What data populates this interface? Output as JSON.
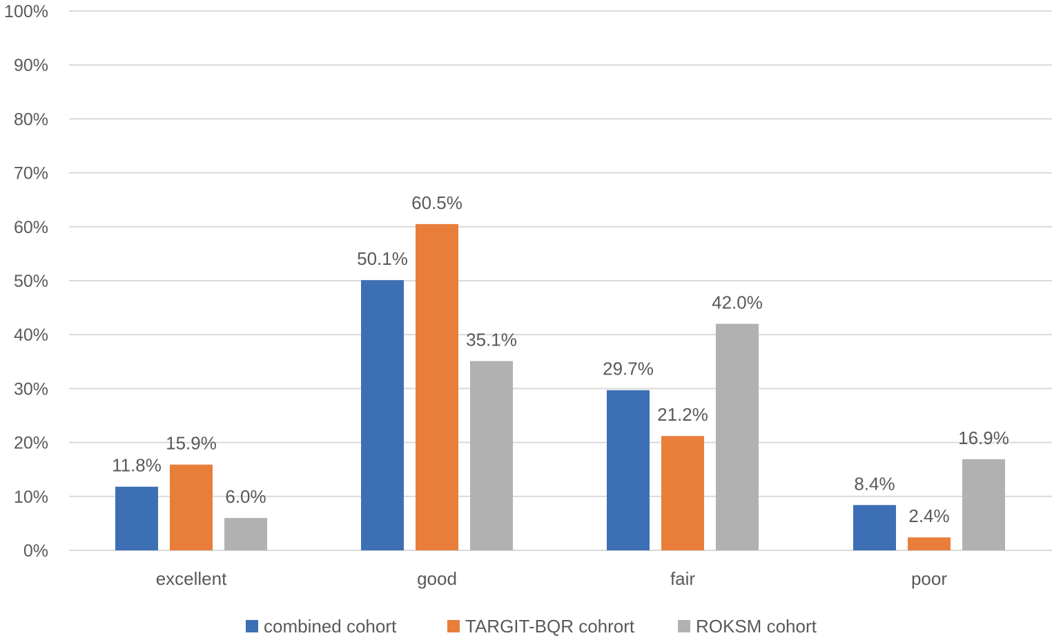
{
  "chart_data": {
    "type": "bar",
    "title": "",
    "xlabel": "",
    "ylabel": "",
    "categories": [
      "excellent",
      "good",
      "fair",
      "poor"
    ],
    "series": [
      {
        "name": "combined cohort",
        "color": "#3d6fb4",
        "values": [
          11.8,
          50.1,
          29.7,
          8.4
        ],
        "labels": [
          "11.8%",
          "50.1%",
          "29.7%",
          "8.4%"
        ]
      },
      {
        "name": "TARGIT-BQR cohrort",
        "color": "#e97e3b",
        "values": [
          15.9,
          60.5,
          21.2,
          2.4
        ],
        "labels": [
          "15.9%",
          "60.5%",
          "21.2%",
          "2.4%"
        ]
      },
      {
        "name": "ROKSM cohort",
        "color": "#b1b1b1",
        "values": [
          6.0,
          35.1,
          42.0,
          16.9
        ],
        "labels": [
          "6.0%",
          "35.1%",
          "42.0%",
          "16.9%"
        ]
      }
    ],
    "ylim": [
      0,
      100
    ],
    "yticks": [
      0,
      10,
      20,
      30,
      40,
      50,
      60,
      70,
      80,
      90,
      100
    ],
    "ytick_labels": [
      "0%",
      "10%",
      "20%",
      "30%",
      "40%",
      "50%",
      "60%",
      "70%",
      "80%",
      "90%",
      "100%"
    ],
    "grid": true,
    "legend_position": "bottom"
  }
}
